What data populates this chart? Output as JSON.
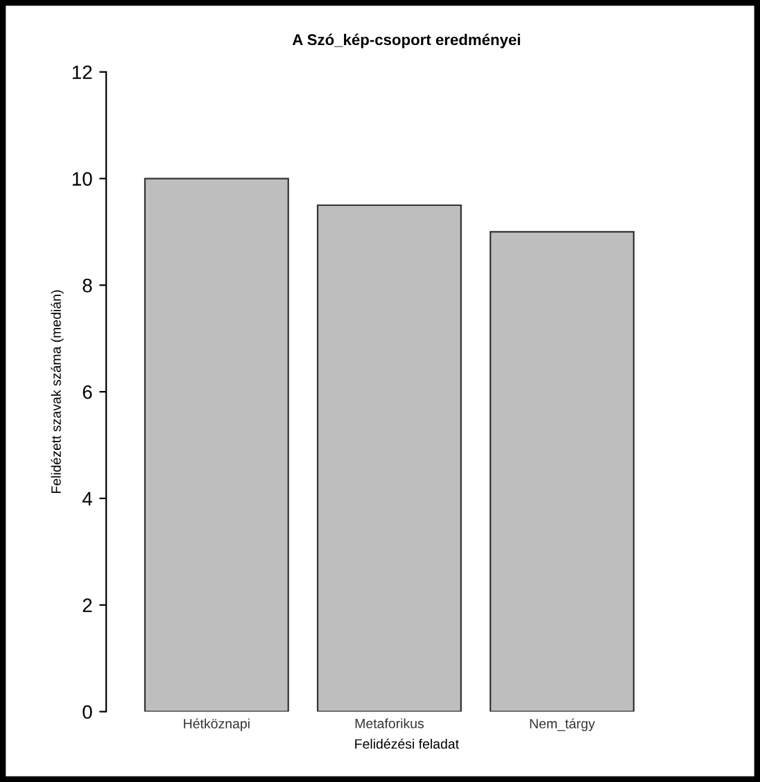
{
  "chart_data": {
    "type": "bar",
    "title": "A Szó_kép-csoport eredményei",
    "xlabel": "Felidézési feladat",
    "ylabel": "Felidézett szavak száma (medián)",
    "categories": [
      "Hétköznapi",
      "Metaforikus",
      "Nem_tárgy"
    ],
    "values": [
      10,
      9.5,
      9.0
    ],
    "color": "#bebebe",
    "ylim": [
      0,
      12
    ],
    "yticks": [
      0,
      2,
      4,
      6,
      8,
      10,
      12
    ],
    "grid": false,
    "legend": false
  }
}
